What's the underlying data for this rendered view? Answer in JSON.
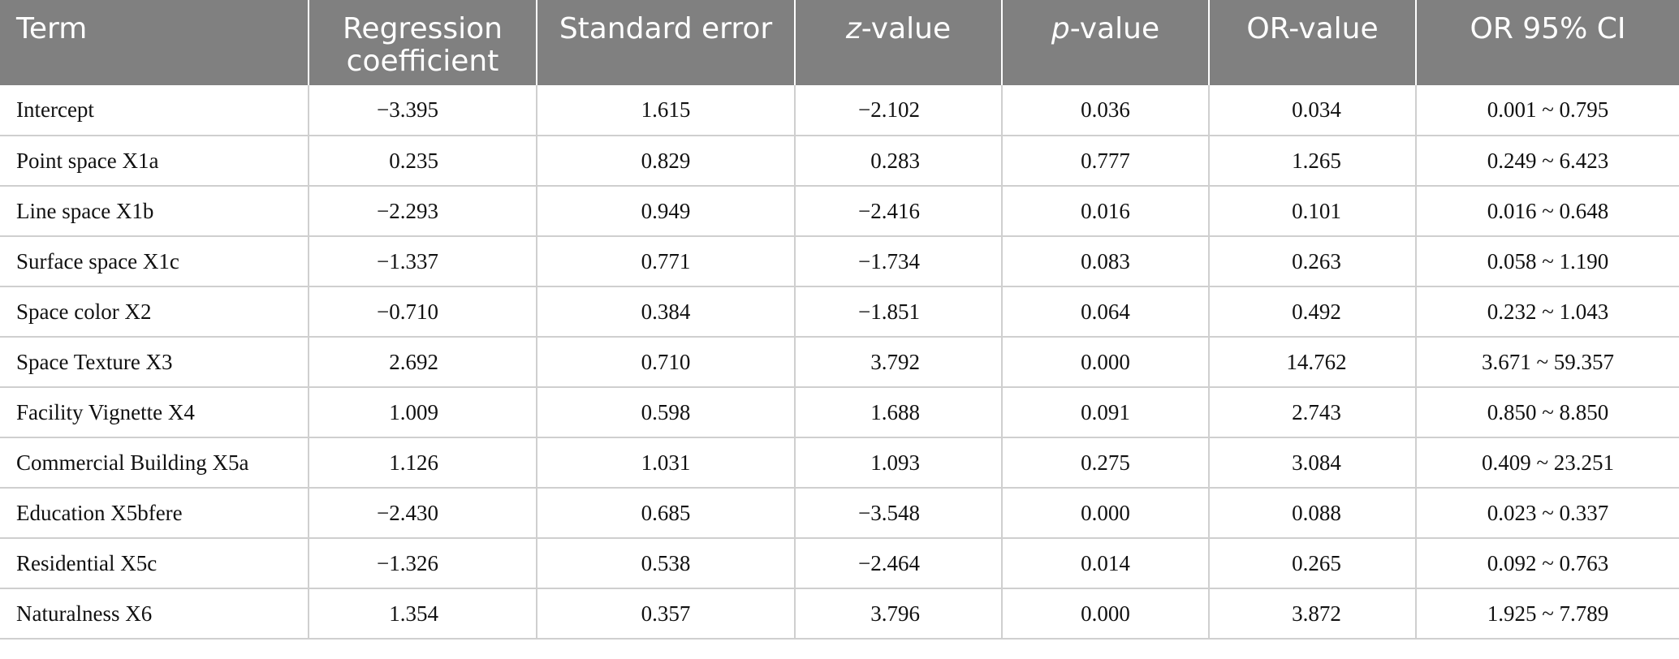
{
  "table": {
    "headers": {
      "term": "Term",
      "coef": "Regression coefficient",
      "se": "Standard error",
      "z_italic": "z",
      "z_rest": "-value",
      "p_italic": "p",
      "p_rest": "-value",
      "or": "OR-value",
      "ci": "OR 95% CI"
    },
    "rows": [
      {
        "term": "Intercept",
        "coef": "−3.395",
        "se": "1.615",
        "z": "−2.102",
        "p": "0.036",
        "or": "0.034",
        "ci": "0.001 ~ 0.795"
      },
      {
        "term": "Point space X1a",
        "coef": "0.235",
        "se": "0.829",
        "z": "0.283",
        "p": "0.777",
        "or": "1.265",
        "ci": "0.249 ~ 6.423"
      },
      {
        "term": "Line space X1b",
        "coef": "−2.293",
        "se": "0.949",
        "z": "−2.416",
        "p": "0.016",
        "or": "0.101",
        "ci": "0.016 ~ 0.648"
      },
      {
        "term": "Surface space X1c",
        "coef": "−1.337",
        "se": "0.771",
        "z": "−1.734",
        "p": "0.083",
        "or": "0.263",
        "ci": "0.058 ~ 1.190"
      },
      {
        "term": "Space color X2",
        "coef": "−0.710",
        "se": "0.384",
        "z": "−1.851",
        "p": "0.064",
        "or": "0.492",
        "ci": "0.232 ~ 1.043"
      },
      {
        "term": "Space Texture X3",
        "coef": "2.692",
        "se": "0.710",
        "z": "3.792",
        "p": "0.000",
        "or": "14.762",
        "ci": "3.671 ~ 59.357"
      },
      {
        "term": "Facility Vignette X4",
        "coef": "1.009",
        "se": "0.598",
        "z": "1.688",
        "p": "0.091",
        "or": "2.743",
        "ci": "0.850 ~ 8.850"
      },
      {
        "term": "Commercial Building X5a",
        "coef": "1.126",
        "se": "1.031",
        "z": "1.093",
        "p": "0.275",
        "or": "3.084",
        "ci": "0.409 ~ 23.251"
      },
      {
        "term": "Education X5bfere",
        "coef": "−2.430",
        "se": "0.685",
        "z": "−3.548",
        "p": "0.000",
        "or": "0.088",
        "ci": "0.023 ~ 0.337"
      },
      {
        "term": "Residential X5c",
        "coef": "−1.326",
        "se": "0.538",
        "z": "−2.464",
        "p": "0.014",
        "or": "0.265",
        "ci": "0.092 ~ 0.763"
      },
      {
        "term": "Naturalness X6",
        "coef": "1.354",
        "se": "0.357",
        "z": "3.796",
        "p": "0.000",
        "or": "3.872",
        "ci": "1.925 ~ 7.789"
      }
    ]
  }
}
